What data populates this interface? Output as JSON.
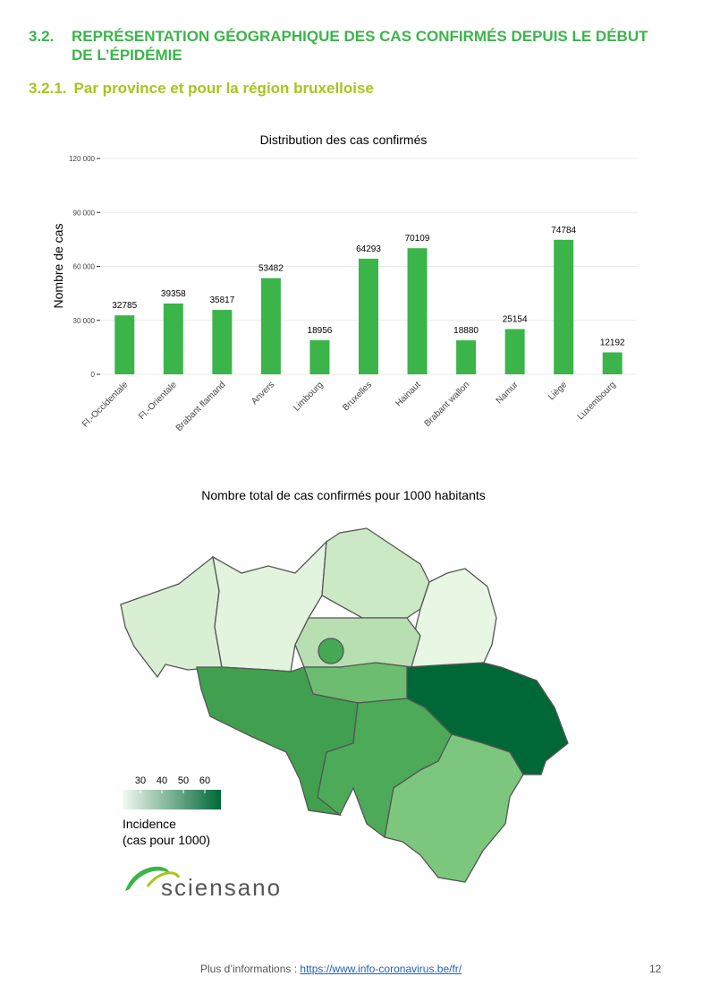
{
  "header": {
    "number": "3.2.",
    "title": "REPRÉSENTATION GÉOGRAPHIQUE DES CAS CONFIRMÉS DEPUIS LE DÉBUT DE L’ÉPIDÉMIE"
  },
  "subheader": {
    "number": "3.2.1.",
    "title": "Par province et pour la région bruxelloise"
  },
  "chart_data": {
    "type": "bar",
    "title": "Distribution des cas confirmés",
    "ylabel": "Nombre de cas",
    "categories": [
      "Fl.-Occidentale",
      "Fl.-Orientale",
      "Brabant flamand",
      "Anvers",
      "Limbourg",
      "Bruxelles",
      "Hainaut",
      "Brabant wallon",
      "Namur",
      "Liège",
      "Luxembourg"
    ],
    "values": [
      32785,
      39358,
      35817,
      53482,
      18956,
      64293,
      70109,
      18880,
      25154,
      74784,
      12192
    ],
    "color": "#3bb54a",
    "ylim": [
      0,
      120000
    ],
    "yticks": [
      0,
      {
        "value": 30000,
        "label": "30 000"
      },
      {
        "value": 60000,
        "label": "60 000"
      },
      {
        "value": 90000,
        "label": "90 000"
      },
      {
        "value": 120000,
        "label": "120 000"
      }
    ],
    "grid": true
  },
  "map": {
    "title": "Nombre total de cas confirmés pour 1000 habitants",
    "legend_ticks": [
      30,
      40,
      50,
      60
    ],
    "legend_title": [
      "Incidence",
      "(cas pour 1000)"
    ]
  },
  "logo": {
    "text": "sciensano"
  },
  "footer": {
    "text": "Plus d’informations :",
    "link": "https://www.info-coronavirus.be/fr/",
    "page": "12"
  }
}
